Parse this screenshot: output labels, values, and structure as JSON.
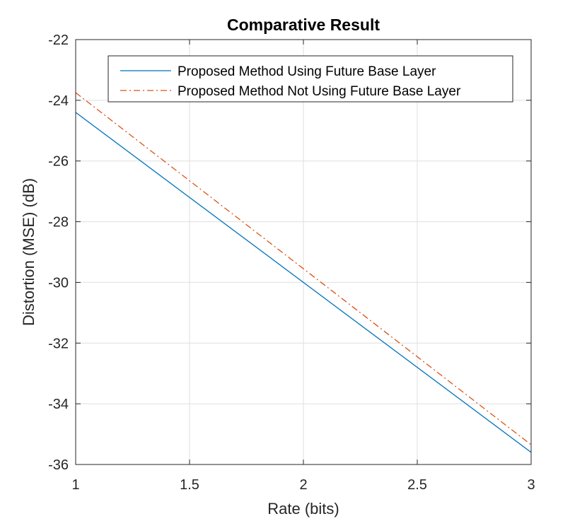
{
  "chart_data": {
    "type": "line",
    "title": "Comparative Result",
    "xlabel": "Rate (bits)",
    "ylabel": "Distortion (MSE) (dB)",
    "xlim": [
      1,
      3
    ],
    "ylim": [
      -36,
      -22
    ],
    "xticks": [
      1,
      1.5,
      2,
      2.5,
      3
    ],
    "xtick_labels": [
      "1",
      "1.5",
      "2",
      "2.5",
      "3"
    ],
    "yticks": [
      -36,
      -34,
      -32,
      -30,
      -28,
      -26,
      -24,
      -22
    ],
    "ytick_labels": [
      "-36",
      "-34",
      "-32",
      "-30",
      "-28",
      "-26",
      "-24",
      "-22"
    ],
    "grid": true,
    "legend_position": "top-right",
    "series": [
      {
        "name": "Proposed Method Using Future Base Layer",
        "color": "#0072BD",
        "line_style": "solid",
        "x": [
          1,
          3
        ],
        "y": [
          -24.4,
          -35.6
        ]
      },
      {
        "name": "Proposed Method Not Using Future Base Layer",
        "color": "#D95319",
        "line_style": "dash-dot",
        "x": [
          1,
          3
        ],
        "y": [
          -23.75,
          -35.35
        ]
      }
    ]
  }
}
